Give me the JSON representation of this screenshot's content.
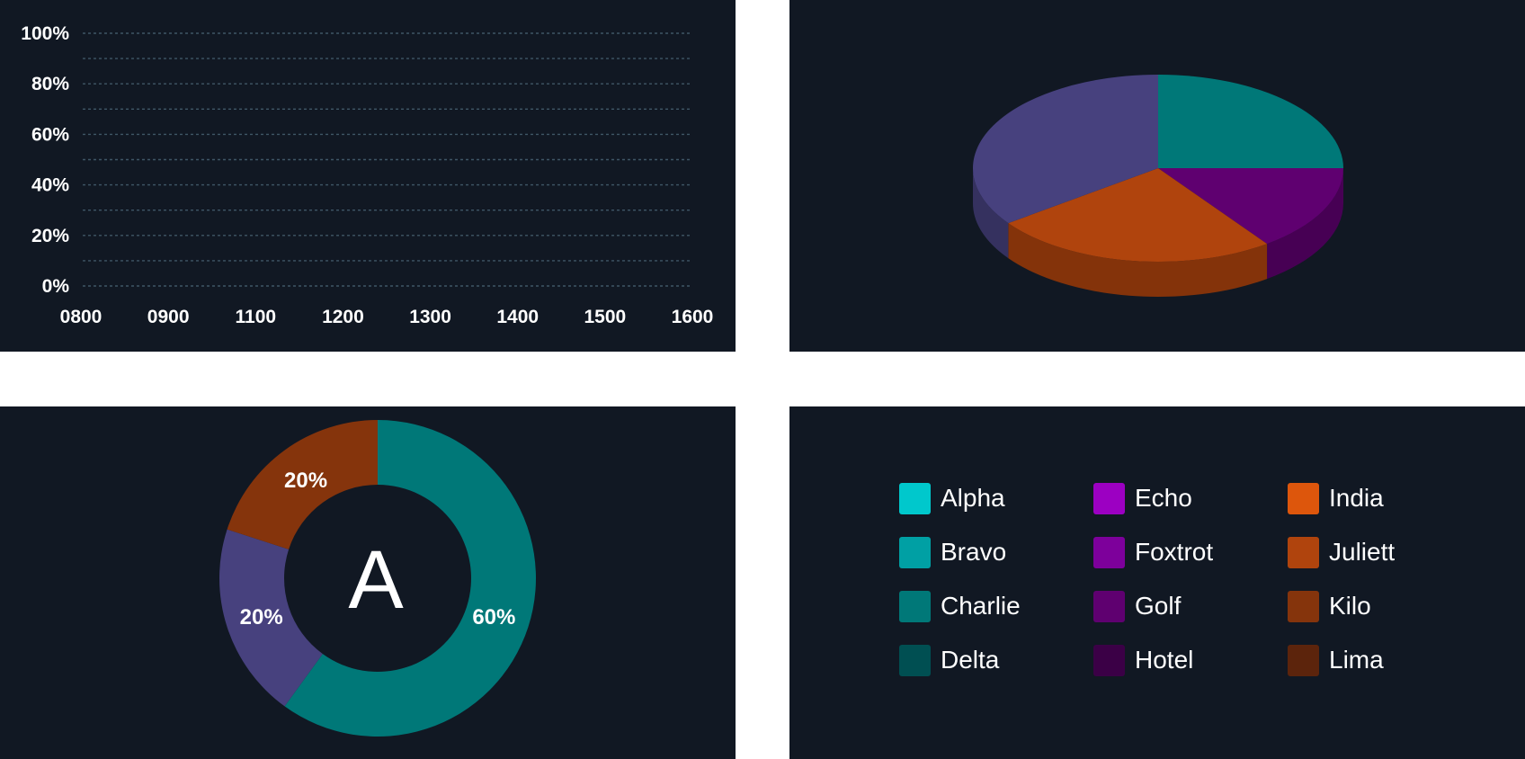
{
  "chart_data": [
    {
      "type": "line",
      "title": "",
      "xlabel": "",
      "ylabel": "",
      "categories": [
        "0800",
        "0900",
        "1100",
        "1200",
        "1300",
        "1400",
        "1500",
        "1600"
      ],
      "y_ticks": [
        "0%",
        "20%",
        "40%",
        "60%",
        "80%",
        "100%"
      ],
      "ylim": [
        0,
        100
      ],
      "grid": true,
      "grid_step": 10,
      "series": []
    },
    {
      "type": "pie",
      "style": "3d",
      "title": "",
      "slices": [
        {
          "value": 25,
          "color": "#007878"
        },
        {
          "value": 15,
          "color": "#5f0070"
        },
        {
          "value": 25,
          "color": "#b0440d"
        },
        {
          "value": 35,
          "color": "#47417e"
        }
      ]
    },
    {
      "type": "pie",
      "style": "donut",
      "title": "",
      "center_text": "A",
      "slices": [
        {
          "value": 60,
          "label": "60%",
          "color": "#007878"
        },
        {
          "value": 20,
          "label": "20%",
          "color": "#47417e"
        },
        {
          "value": 20,
          "label": "20%",
          "color": "#85340c"
        }
      ]
    }
  ],
  "legend": [
    {
      "label": "Alpha",
      "color": "#00c8cc"
    },
    {
      "label": "Bravo",
      "color": "#00a0a4"
    },
    {
      "label": "Charlie",
      "color": "#007878"
    },
    {
      "label": "Delta",
      "color": "#004f52"
    },
    {
      "label": "Echo",
      "color": "#9c00c2"
    },
    {
      "label": "Foxtrot",
      "color": "#7d009b"
    },
    {
      "label": "Golf",
      "color": "#5f0070"
    },
    {
      "label": "Hotel",
      "color": "#3b0046"
    },
    {
      "label": "India",
      "color": "#dd560c"
    },
    {
      "label": "Juliett",
      "color": "#b0440d"
    },
    {
      "label": "Kilo",
      "color": "#85340c"
    },
    {
      "label": "Lima",
      "color": "#5c240c"
    }
  ]
}
